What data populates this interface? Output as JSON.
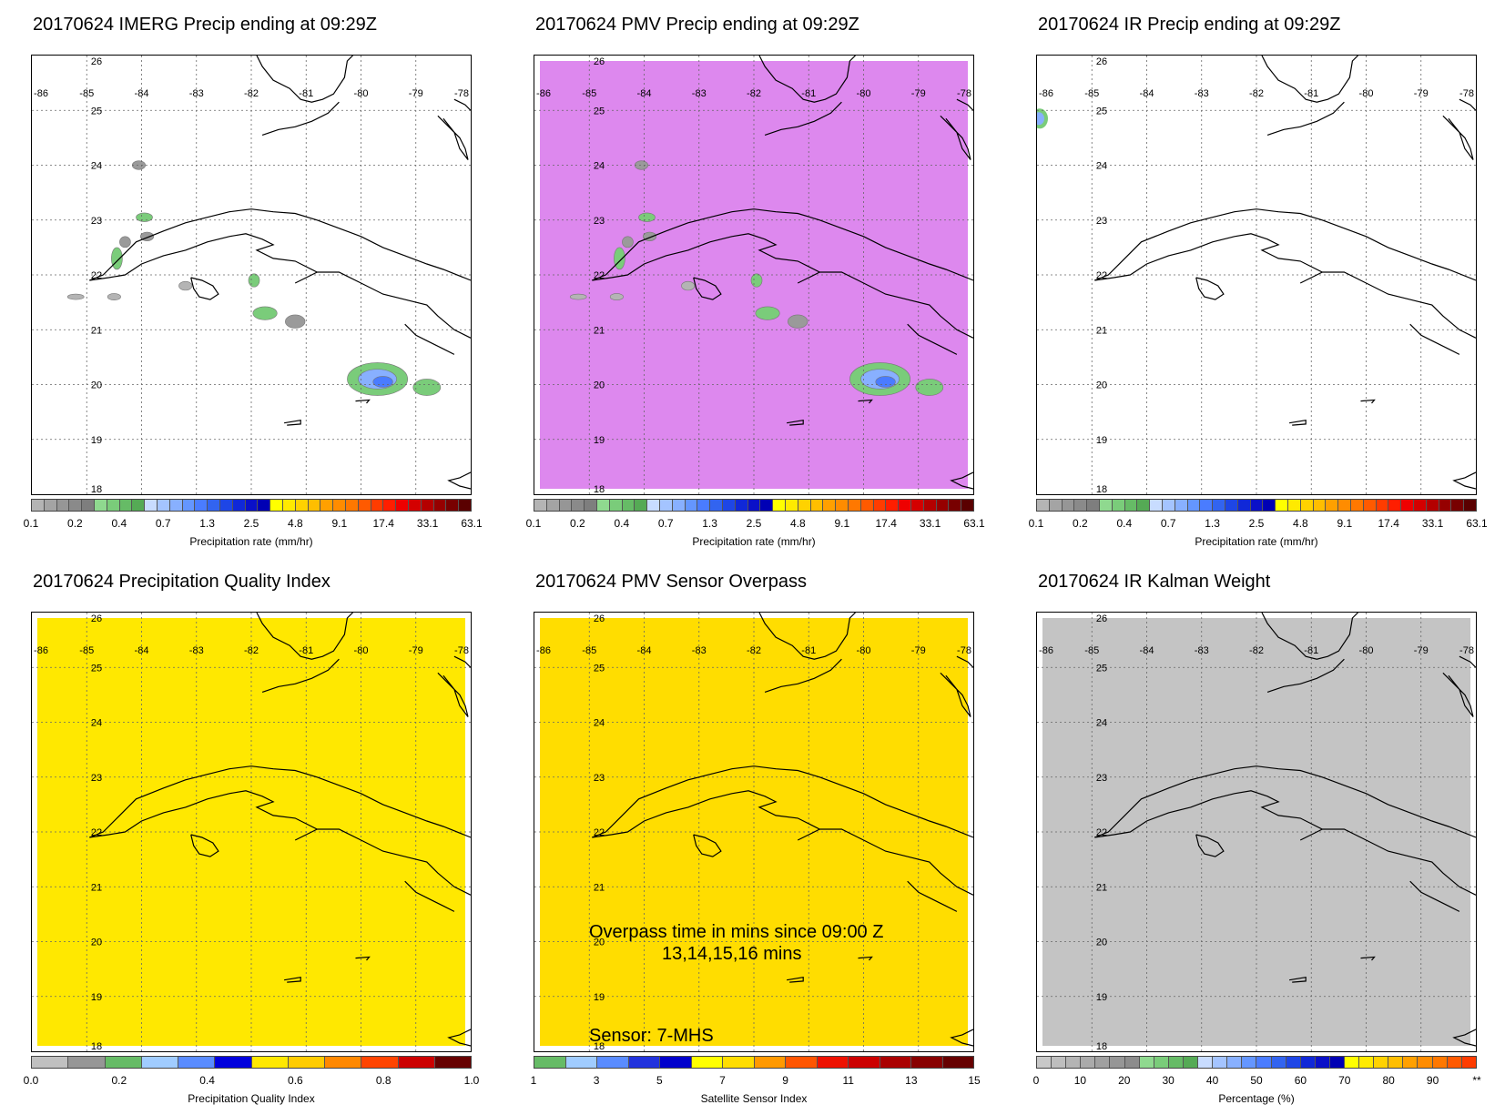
{
  "date": "20170624",
  "panels": [
    {
      "id": "imerg",
      "title": "20170624 IMERG Precip ending at 09:29Z",
      "fill": "none",
      "colorbar": "precip",
      "colorbar_label": "Precipitation rate (mm/hr)",
      "has_precip": true
    },
    {
      "id": "pmv",
      "title": "20170624 PMV Precip ending at 09:29Z",
      "fill": "#dd88ee",
      "colorbar": "precip",
      "colorbar_label": "Precipitation rate (mm/hr)",
      "has_precip": true
    },
    {
      "id": "ir",
      "title": "20170624 IR Precip ending at 09:29Z",
      "fill": "none",
      "colorbar": "precip",
      "colorbar_label": "Precipitation rate (mm/hr)",
      "has_precip": false
    },
    {
      "id": "pqi",
      "title": "20170624 Precipitation Quality Index",
      "fill": "#ffe800",
      "colorbar": "pqi",
      "colorbar_label": "Precipitation Quality Index",
      "has_precip": false
    },
    {
      "id": "overpass",
      "title": "20170624 PMV Sensor Overpass",
      "fill": "#ffdd00",
      "colorbar": "sensor",
      "colorbar_label": "Satellite Sensor Index",
      "has_precip": false,
      "overpass_line1": "Overpass time in mins since 09:00 Z",
      "overpass_line2": "13,14,15,16 mins",
      "sensor_text": "Sensor:   7-MHS"
    },
    {
      "id": "kalman",
      "title": "20170624 IR Kalman Weight",
      "fill": "#c4c4c4",
      "colorbar": "pct",
      "colorbar_label": "Percentage (%)",
      "has_precip": false
    }
  ],
  "axes": {
    "lon_labels": [
      "-86",
      "-85",
      "-84",
      "-83",
      "-82",
      "-81",
      "-80",
      "-79",
      "-78"
    ],
    "lat_labels": [
      "26",
      "25",
      "24",
      "23",
      "22",
      "21",
      "20",
      "19",
      "18"
    ],
    "lon_range": [
      -86,
      -78
    ],
    "lat_range": [
      18,
      26
    ]
  },
  "colorbars": {
    "precip": {
      "colors": [
        "#b4b4b4",
        "#a4a4a4",
        "#969696",
        "#8a8a8a",
        "#7e7e7e",
        "#8fd98f",
        "#7acc7a",
        "#66bb66",
        "#55aa55",
        "#c8dcff",
        "#a4c4ff",
        "#88b0ff",
        "#6496ff",
        "#4a7cff",
        "#3264f0",
        "#1e46e6",
        "#1028d8",
        "#0a10c8",
        "#0000b4",
        "#ffff00",
        "#ffea00",
        "#ffd200",
        "#ffbe00",
        "#ffa000",
        "#ff8c00",
        "#ff7800",
        "#ff5a00",
        "#ff3c00",
        "#ff1e00",
        "#ee0000",
        "#d40000",
        "#b40000",
        "#960000",
        "#780000",
        "#5a0000"
      ],
      "ticks": [
        "0.1",
        "0.2",
        "0.4",
        "0.7",
        "1.3",
        "2.5",
        "4.8",
        "9.1",
        "17.4",
        "33.1",
        "63.1"
      ]
    },
    "pqi": {
      "colors": [
        "#c0c0c0",
        "#969696",
        "#66bb66",
        "#a0ccff",
        "#5a8cff",
        "#0000dd",
        "#ffe800",
        "#ffcc00",
        "#ff8800",
        "#ff4400",
        "#cc0000",
        "#660000"
      ],
      "ticks": [
        "0.0",
        "0.2",
        "0.4",
        "0.6",
        "0.8",
        "1.0"
      ]
    },
    "sensor": {
      "colors": [
        "#66bb66",
        "#a0ccff",
        "#5a8cff",
        "#2233dd",
        "#0000cc",
        "#ffff00",
        "#ffdd00",
        "#ff9900",
        "#ff5500",
        "#ee1100",
        "#cc0000",
        "#aa0000",
        "#880000",
        "#660000"
      ],
      "ticks": [
        "1",
        "3",
        "5",
        "7",
        "9",
        "11",
        "13",
        "15"
      ]
    },
    "pct": {
      "colors": [
        "#c8c8c8",
        "#bebebe",
        "#b4b4b4",
        "#aaaaaa",
        "#a0a0a0",
        "#969696",
        "#8c8c8c",
        "#8fd98f",
        "#7acc7a",
        "#66bb66",
        "#55aa55",
        "#c8dcff",
        "#a4c4ff",
        "#88b0ff",
        "#6496ff",
        "#4a7cff",
        "#3264f0",
        "#1e46e6",
        "#1028d8",
        "#0a10c8",
        "#0000b4",
        "#ffff00",
        "#ffea00",
        "#ffd200",
        "#ffbe00",
        "#ffa000",
        "#ff8c00",
        "#ff7800",
        "#ff5a00",
        "#ff3c00"
      ],
      "ticks": [
        "0",
        "10",
        "20",
        "30",
        "40",
        "50",
        "60",
        "70",
        "80",
        "90",
        "**"
      ]
    }
  }
}
